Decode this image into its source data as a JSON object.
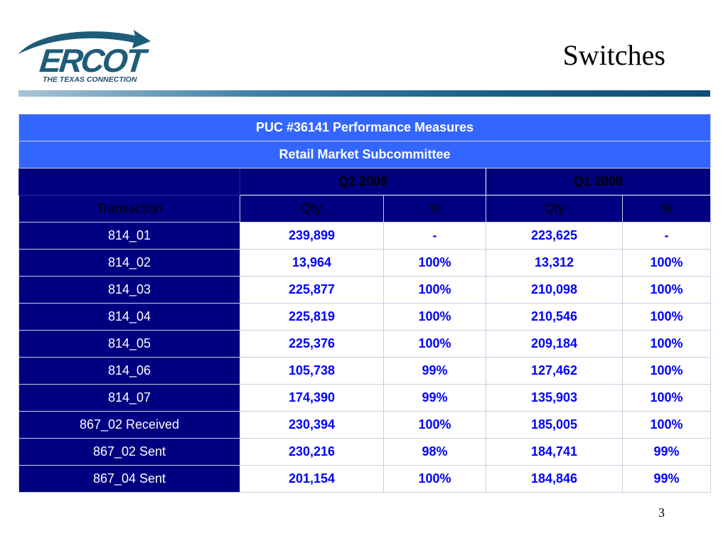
{
  "logo": {
    "wordmark": "ERCOT",
    "tagline": "THE TEXAS CONNECTION"
  },
  "title": "Switches",
  "table": {
    "title": "PUC #36141 Performance Measures",
    "subtitle": "Retail Market Subcommittee",
    "period_headers": [
      "Q2 2009",
      "Q1 2009"
    ],
    "column_headers": [
      "Transaction",
      "Qty",
      "%",
      "Qty",
      "%"
    ],
    "rows": [
      {
        "transaction": "814_01",
        "q2_qty": "239,899",
        "q2_pct": "-",
        "q1_qty": "223,625",
        "q1_pct": "-"
      },
      {
        "transaction": "814_02",
        "q2_qty": "13,964",
        "q2_pct": "100%",
        "q1_qty": "13,312",
        "q1_pct": "100%"
      },
      {
        "transaction": "814_03",
        "q2_qty": "225,877",
        "q2_pct": "100%",
        "q1_qty": "210,098",
        "q1_pct": "100%"
      },
      {
        "transaction": "814_04",
        "q2_qty": "225,819",
        "q2_pct": "100%",
        "q1_qty": "210,546",
        "q1_pct": "100%"
      },
      {
        "transaction": "814_05",
        "q2_qty": "225,376",
        "q2_pct": "100%",
        "q1_qty": "209,184",
        "q1_pct": "100%"
      },
      {
        "transaction": "814_06",
        "q2_qty": "105,738",
        "q2_pct": "99%",
        "q1_qty": "127,462",
        "q1_pct": "100%"
      },
      {
        "transaction": "814_07",
        "q2_qty": "174,390",
        "q2_pct": "99%",
        "q1_qty": "135,903",
        "q1_pct": "100%"
      },
      {
        "transaction": "867_02 Received",
        "q2_qty": "230,394",
        "q2_pct": "100%",
        "q1_qty": "185,005",
        "q1_pct": "100%"
      },
      {
        "transaction": "867_02 Sent",
        "q2_qty": "230,216",
        "q2_pct": "98%",
        "q1_qty": "184,741",
        "q1_pct": "99%"
      },
      {
        "transaction": "867_04 Sent",
        "q2_qty": "201,154",
        "q2_pct": "100%",
        "q1_qty": "184,846",
        "q1_pct": "99%"
      }
    ]
  },
  "page_number": "3",
  "colors": {
    "title_bar": "#3366ff",
    "navy": "#000080",
    "value_text": "#0000ff",
    "logo_blue": "#1f5c7a"
  }
}
